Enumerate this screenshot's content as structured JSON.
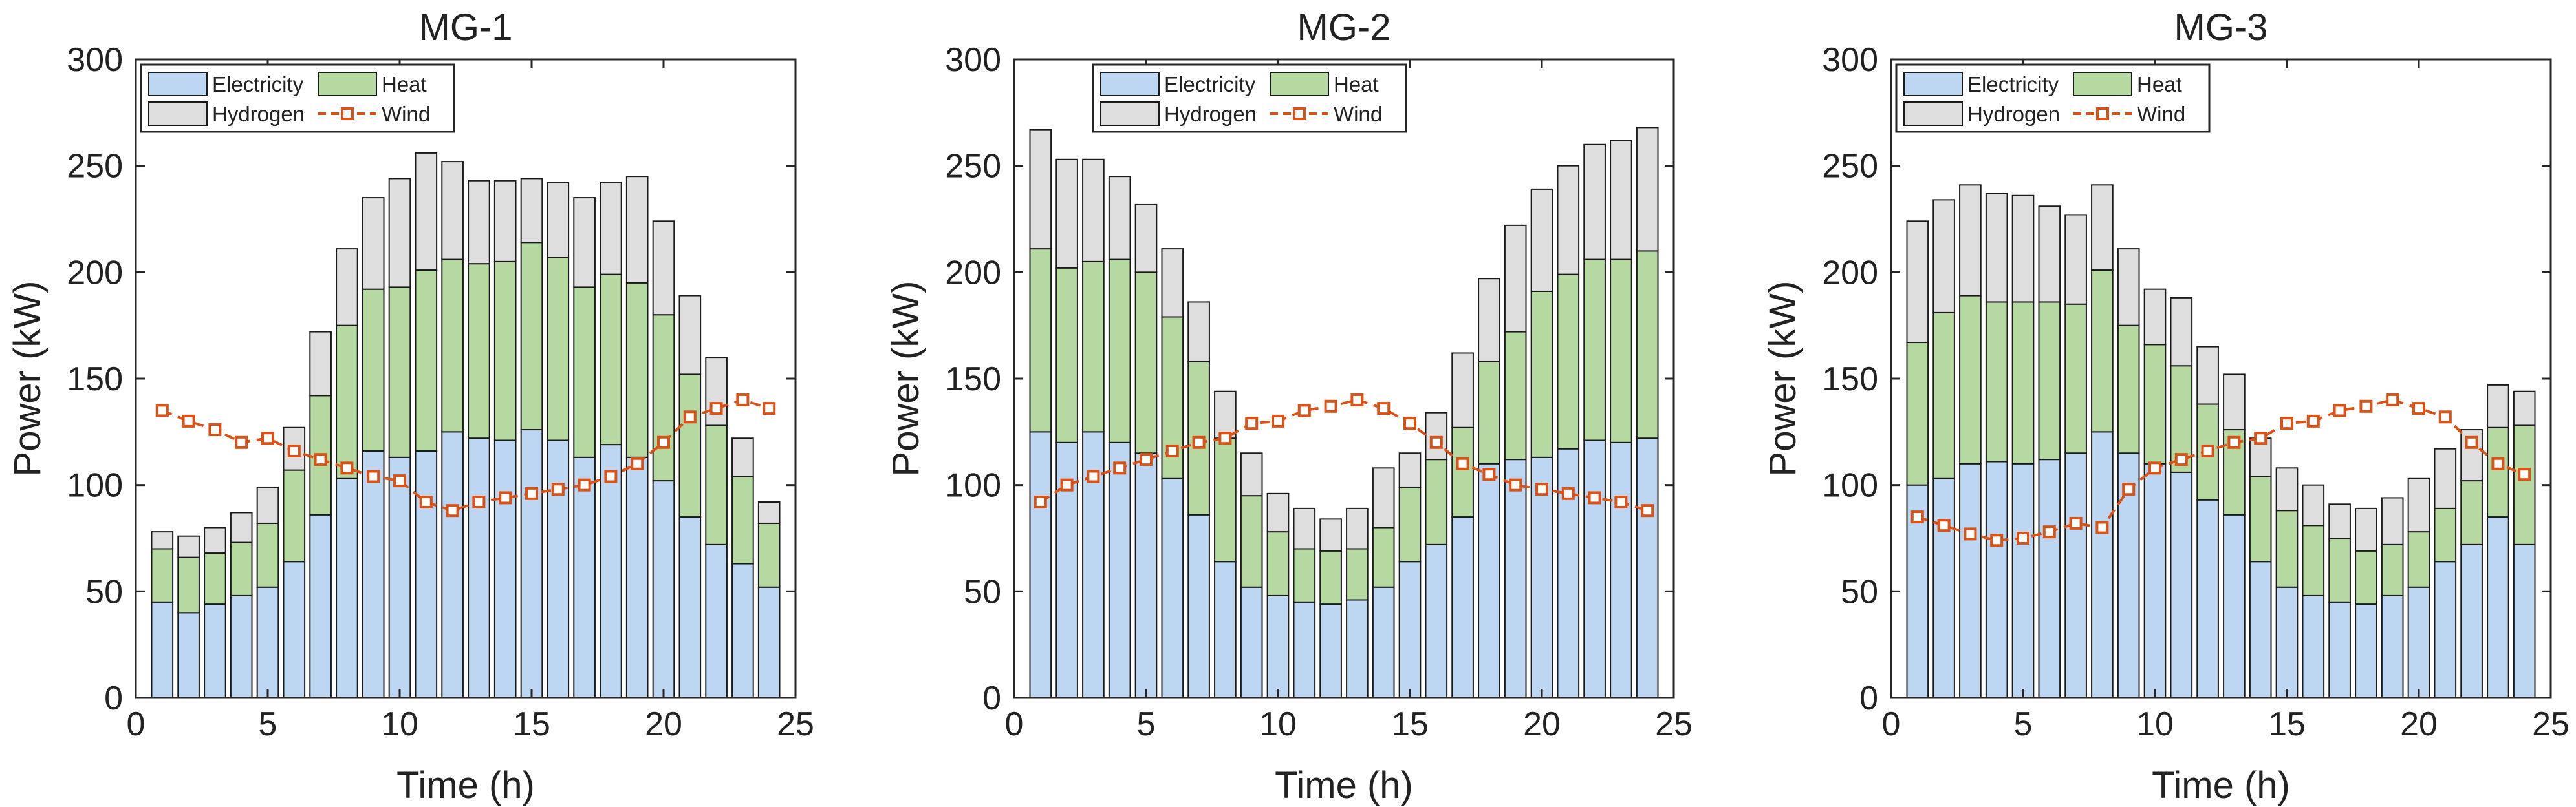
{
  "colors": {
    "electricity": "#bdd7f2",
    "heat": "#b5d9a1",
    "hydrogen": "#dedede",
    "wind": "#d95319",
    "bar_edge": "#1a1a1a",
    "axis": "#262626"
  },
  "chart_data": [
    {
      "type": "bar",
      "stacked": true,
      "title": "MG-1",
      "xlabel": "Time (h)",
      "ylabel": "Power (kW)",
      "xlim": [
        0,
        25
      ],
      "ylim": [
        0,
        300
      ],
      "xticks": [
        0,
        5,
        10,
        15,
        20,
        25
      ],
      "yticks": [
        0,
        50,
        100,
        150,
        200,
        250,
        300
      ],
      "legend_position": "top-left",
      "x": [
        1,
        2,
        3,
        4,
        5,
        6,
        7,
        8,
        9,
        10,
        11,
        12,
        13,
        14,
        15,
        16,
        17,
        18,
        19,
        20,
        21,
        22,
        23,
        24
      ],
      "series": [
        {
          "name": "Electricity",
          "kind": "bar",
          "values": [
            45,
            40,
            44,
            48,
            52,
            64,
            86,
            103,
            116,
            113,
            116,
            125,
            122,
            121,
            126,
            121,
            113,
            119,
            113,
            102,
            85,
            72,
            63,
            52
          ]
        },
        {
          "name": "Heat",
          "kind": "bar",
          "values": [
            25,
            26,
            24,
            25,
            30,
            43,
            56,
            72,
            76,
            80,
            85,
            81,
            82,
            84,
            88,
            86,
            80,
            80,
            82,
            78,
            67,
            56,
            41,
            30
          ]
        },
        {
          "name": "Hydrogen",
          "kind": "bar",
          "values": [
            8,
            10,
            12,
            14,
            17,
            20,
            30,
            36,
            43,
            51,
            55,
            46,
            39,
            38,
            30,
            35,
            42,
            43,
            50,
            44,
            37,
            32,
            18,
            10
          ]
        },
        {
          "name": "Wind",
          "kind": "line",
          "values": [
            135,
            130,
            126,
            120,
            122,
            116,
            112,
            108,
            104,
            102,
            92,
            88,
            92,
            94,
            96,
            98,
            100,
            104,
            110,
            120,
            132,
            136,
            140,
            136
          ]
        }
      ]
    },
    {
      "type": "bar",
      "stacked": true,
      "title": "MG-2",
      "xlabel": "Time (h)",
      "ylabel": "Power (kW)",
      "xlim": [
        0,
        25
      ],
      "ylim": [
        0,
        300
      ],
      "xticks": [
        0,
        5,
        10,
        15,
        20,
        25
      ],
      "yticks": [
        0,
        50,
        100,
        150,
        200,
        250,
        300
      ],
      "legend_position": "top-center",
      "x": [
        1,
        2,
        3,
        4,
        5,
        6,
        7,
        8,
        9,
        10,
        11,
        12,
        13,
        14,
        15,
        16,
        17,
        18,
        19,
        20,
        21,
        22,
        23,
        24
      ],
      "series": [
        {
          "name": "Electricity",
          "kind": "bar",
          "values": [
            125,
            120,
            125,
            120,
            115,
            103,
            86,
            64,
            52,
            48,
            45,
            44,
            46,
            52,
            64,
            72,
            85,
            110,
            112,
            113,
            117,
            121,
            120,
            122
          ]
        },
        {
          "name": "Heat",
          "kind": "bar",
          "values": [
            86,
            82,
            80,
            86,
            85,
            76,
            72,
            58,
            43,
            30,
            25,
            25,
            24,
            28,
            35,
            40,
            42,
            48,
            60,
            78,
            82,
            85,
            86,
            88
          ]
        },
        {
          "name": "Hydrogen",
          "kind": "bar",
          "values": [
            56,
            51,
            48,
            39,
            32,
            32,
            28,
            22,
            20,
            18,
            19,
            15,
            19,
            28,
            16,
            22,
            35,
            39,
            50,
            48,
            51,
            54,
            56,
            58
          ]
        },
        {
          "name": "Wind",
          "kind": "line",
          "values": [
            92,
            100,
            104,
            108,
            112,
            116,
            120,
            122,
            129,
            130,
            135,
            137,
            140,
            136,
            129,
            120,
            110,
            105,
            100,
            98,
            96,
            94,
            92,
            88
          ]
        }
      ]
    },
    {
      "type": "bar",
      "stacked": true,
      "title": "MG-3",
      "xlabel": "Time (h)",
      "ylabel": "Power (kW)",
      "xlim": [
        0,
        25
      ],
      "ylim": [
        0,
        300
      ],
      "xticks": [
        0,
        5,
        10,
        15,
        20,
        25
      ],
      "yticks": [
        0,
        50,
        100,
        150,
        200,
        250,
        300
      ],
      "legend_position": "top-left",
      "x": [
        1,
        2,
        3,
        4,
        5,
        6,
        7,
        8,
        9,
        10,
        11,
        12,
        13,
        14,
        15,
        16,
        17,
        18,
        19,
        20,
        21,
        22,
        23,
        24
      ],
      "series": [
        {
          "name": "Electricity",
          "kind": "bar",
          "values": [
            100,
            103,
            110,
            111,
            110,
            112,
            115,
            125,
            115,
            110,
            106,
            93,
            86,
            64,
            52,
            48,
            45,
            44,
            48,
            52,
            64,
            72,
            85,
            72
          ]
        },
        {
          "name": "Heat",
          "kind": "bar",
          "values": [
            67,
            78,
            79,
            75,
            76,
            74,
            70,
            76,
            60,
            56,
            50,
            45,
            40,
            40,
            36,
            33,
            30,
            25,
            24,
            26,
            25,
            30,
            42,
            56
          ]
        },
        {
          "name": "Hydrogen",
          "kind": "bar",
          "values": [
            57,
            53,
            52,
            51,
            50,
            45,
            42,
            40,
            36,
            26,
            32,
            27,
            26,
            18,
            20,
            19,
            16,
            20,
            22,
            25,
            28,
            24,
            20,
            16
          ]
        },
        {
          "name": "Wind",
          "kind": "line",
          "values": [
            85,
            81,
            77,
            74,
            75,
            78,
            82,
            80,
            98,
            108,
            112,
            116,
            120,
            122,
            129,
            130,
            135,
            137,
            140,
            136,
            132,
            120,
            110,
            105
          ]
        }
      ]
    }
  ]
}
